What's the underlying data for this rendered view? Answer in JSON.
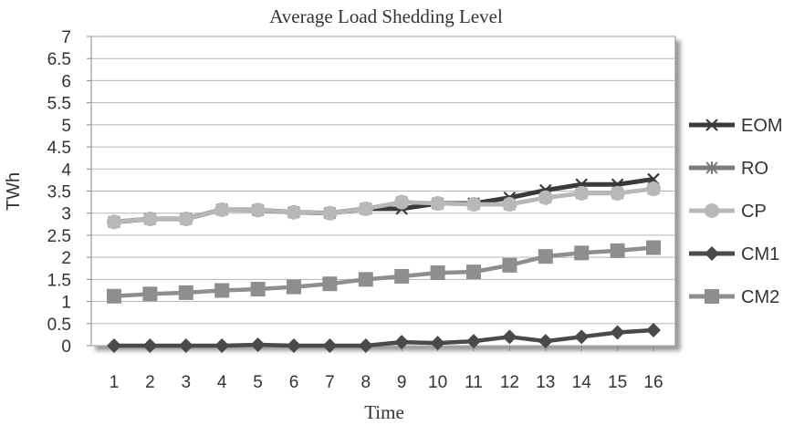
{
  "chart_data": {
    "type": "line",
    "title": "Average Load Shedding Level",
    "xlabel": "Time",
    "ylabel": "TWh",
    "x": [
      1,
      2,
      3,
      4,
      5,
      6,
      7,
      8,
      9,
      10,
      11,
      12,
      13,
      14,
      15,
      16
    ],
    "ylim": [
      0,
      7
    ],
    "yticks": [
      "0",
      "0.5",
      "1",
      "1.5",
      "2",
      "2.5",
      "3",
      "3.5",
      "4",
      "4.5",
      "5",
      "5.5",
      "6",
      "6.5",
      "7"
    ],
    "grid": true,
    "legend": "right",
    "series": [
      {
        "name": "EOM",
        "marker": "x",
        "color": "#3a3a3a",
        "values": [
          2.8,
          2.87,
          2.87,
          3.08,
          3.07,
          3.02,
          3.0,
          3.1,
          3.1,
          3.22,
          3.22,
          3.35,
          3.52,
          3.65,
          3.65,
          3.77
        ]
      },
      {
        "name": "RO",
        "marker": "asterisk",
        "color": "#7a7a7a",
        "values": [
          2.8,
          2.87,
          2.87,
          3.08,
          3.07,
          3.02,
          3.0,
          3.1,
          3.25,
          3.22,
          3.2,
          3.2,
          3.35,
          3.45,
          3.45,
          3.55
        ]
      },
      {
        "name": "CP",
        "marker": "circle",
        "color": "#b8b8b8",
        "values": [
          2.8,
          2.87,
          2.87,
          3.08,
          3.07,
          3.02,
          3.0,
          3.1,
          3.25,
          3.22,
          3.2,
          3.2,
          3.35,
          3.45,
          3.45,
          3.55
        ]
      },
      {
        "name": "CM1",
        "marker": "diamond",
        "color": "#4a4a4a",
        "values": [
          0.0,
          0.0,
          0.0,
          0.0,
          0.02,
          0.0,
          0.0,
          0.0,
          0.08,
          0.06,
          0.1,
          0.2,
          0.1,
          0.2,
          0.3,
          0.35
        ]
      },
      {
        "name": "CM2",
        "marker": "square",
        "color": "#8e8e8e",
        "values": [
          1.12,
          1.17,
          1.2,
          1.25,
          1.28,
          1.33,
          1.4,
          1.5,
          1.57,
          1.65,
          1.67,
          1.82,
          2.02,
          2.1,
          2.15,
          2.22
        ]
      }
    ]
  }
}
